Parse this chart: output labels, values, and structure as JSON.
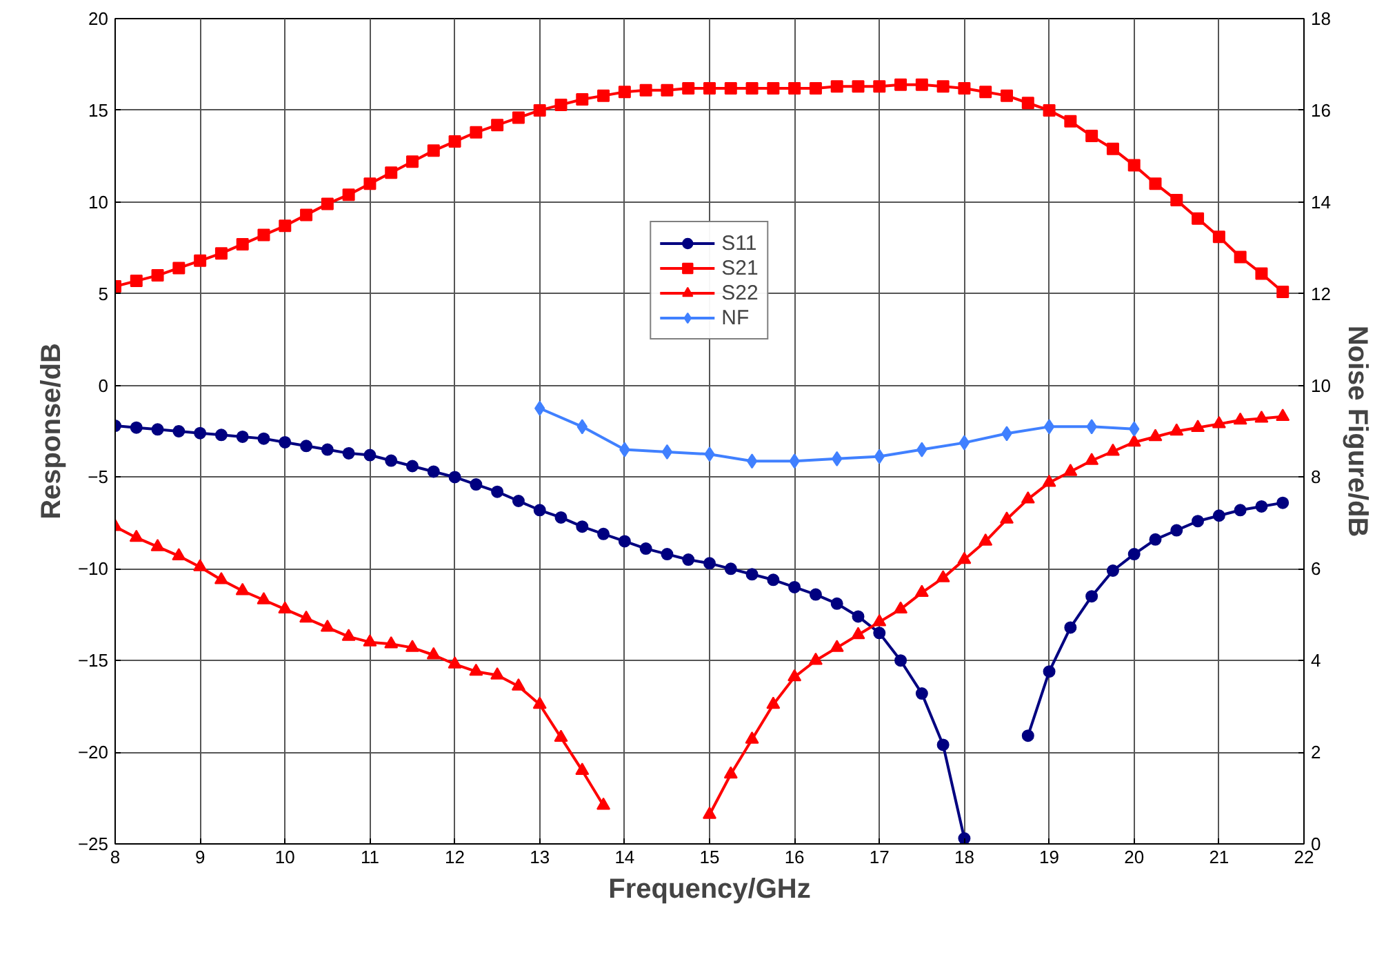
{
  "chart_data": {
    "type": "line",
    "xlabel": "Frequency/GHz",
    "ylabel": "Response/dB",
    "y2label": "Noise Figure/dB",
    "x": [
      8,
      8.25,
      8.5,
      8.75,
      9,
      9.25,
      9.5,
      9.75,
      10,
      10.25,
      10.5,
      10.75,
      11,
      11.25,
      11.5,
      11.75,
      12,
      12.25,
      12.5,
      12.75,
      13,
      13.25,
      13.5,
      13.75,
      14,
      14.25,
      14.5,
      14.75,
      15,
      15.25,
      15.5,
      15.75,
      16,
      16.25,
      16.5,
      16.75,
      17,
      17.25,
      17.5,
      17.75,
      18,
      18.25,
      18.5,
      18.75,
      19,
      19.25,
      19.5,
      19.75,
      20,
      20.25,
      20.5,
      20.75,
      21,
      21.25,
      21.5,
      21.75
    ],
    "xlim": [
      8,
      22
    ],
    "xticks": [
      8,
      9,
      10,
      11,
      12,
      13,
      14,
      15,
      16,
      17,
      18,
      19,
      20,
      21,
      22
    ],
    "ylim": [
      -25,
      20
    ],
    "yticks": [
      -25,
      -20,
      -15,
      -10,
      -5,
      0,
      5,
      10,
      15,
      20
    ],
    "y2lim": [
      0,
      18
    ],
    "y2ticks": [
      0,
      2,
      4,
      6,
      8,
      10,
      12,
      14,
      16,
      18
    ],
    "grid": true,
    "legend": "top",
    "series": [
      {
        "name": "S11",
        "color": "#000080",
        "marker": "circle",
        "values": [
          -2.2,
          -2.3,
          -2.4,
          -2.5,
          -2.6,
          -2.7,
          -2.8,
          -2.9,
          -3.1,
          -3.3,
          -3.5,
          -3.7,
          -3.8,
          -4.1,
          -4.4,
          -4.7,
          -5.0,
          -5.4,
          -5.8,
          -6.3,
          -6.8,
          -7.2,
          -7.7,
          -8.1,
          -8.5,
          -8.9,
          -9.2,
          -9.5,
          -9.7,
          -10.0,
          -10.3,
          -10.6,
          -11.0,
          -11.4,
          -11.9,
          -12.6,
          -13.5,
          -15.0,
          -16.8,
          -19.6,
          -24.7,
          null,
          null,
          -19.1,
          -15.6,
          -13.2,
          -11.5,
          -10.1,
          -9.2,
          -8.4,
          -7.9,
          -7.4,
          -7.1,
          -6.8,
          -6.6,
          -6.4
        ]
      },
      {
        "name": "S21",
        "color": "#ff0000",
        "marker": "square",
        "values": [
          5.4,
          5.7,
          6.0,
          6.4,
          6.8,
          7.2,
          7.7,
          8.2,
          8.7,
          9.3,
          9.9,
          10.4,
          11.0,
          11.6,
          12.2,
          12.8,
          13.3,
          13.8,
          14.2,
          14.6,
          15.0,
          15.3,
          15.6,
          15.8,
          16.0,
          16.1,
          16.1,
          16.2,
          16.2,
          16.2,
          16.2,
          16.2,
          16.2,
          16.2,
          16.3,
          16.3,
          16.3,
          16.4,
          16.4,
          16.3,
          16.2,
          16.0,
          15.8,
          15.4,
          15.0,
          14.4,
          13.6,
          12.9,
          12.0,
          11.0,
          10.1,
          9.1,
          8.1,
          7.0,
          6.1,
          5.1
        ]
      },
      {
        "name": "S22",
        "color": "#ff0000",
        "marker": "triangle",
        "values": [
          -7.7,
          -8.3,
          -8.8,
          -9.3,
          -9.9,
          -10.6,
          -11.2,
          -11.7,
          -12.2,
          -12.7,
          -13.2,
          -13.7,
          -14.0,
          -14.1,
          -14.3,
          -14.7,
          -15.2,
          -15.6,
          -15.8,
          -16.4,
          -17.4,
          -19.2,
          -21.0,
          -22.9,
          null,
          null,
          null,
          null,
          -23.4,
          -21.2,
          -19.3,
          -17.4,
          -15.9,
          -15.0,
          -14.3,
          -13.6,
          -12.9,
          -12.2,
          -11.3,
          -10.5,
          -9.5,
          -8.5,
          -7.3,
          -6.2,
          -5.3,
          -4.7,
          -4.1,
          -3.6,
          -3.1,
          -2.8,
          -2.5,
          -2.3,
          -2.1,
          -1.9,
          -1.8,
          -1.7
        ]
      },
      {
        "name": "NF",
        "color": "#4080ff",
        "marker": "diamond",
        "axis": "y2",
        "x": [
          13,
          13.5,
          14,
          14.5,
          15,
          15.5,
          16,
          16.5,
          17,
          17.5,
          18,
          18.5,
          19,
          19.5,
          20
        ],
        "values": [
          9.5,
          9.1,
          8.6,
          8.55,
          8.5,
          8.35,
          8.35,
          8.4,
          8.45,
          8.6,
          8.75,
          8.95,
          9.1,
          9.1,
          9.05
        ]
      }
    ]
  }
}
